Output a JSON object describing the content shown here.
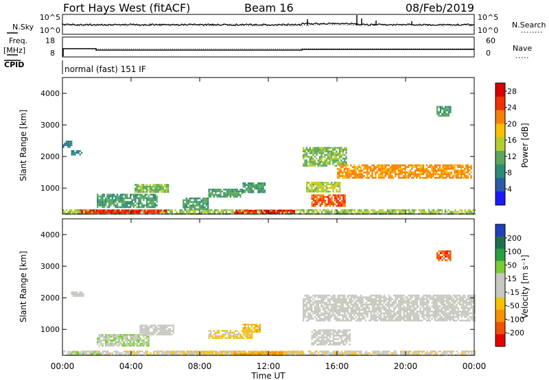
{
  "header": {
    "station": "Fort Hays West (fitACF)",
    "beam": "Beam 16",
    "date": "08/Feb/2019"
  },
  "status_panels": {
    "nsky": {
      "label": "N.Sky",
      "ticks": [
        "10^5",
        "10^0"
      ]
    },
    "nsearch": {
      "label": "N.Search",
      "ticks": [
        "10^5",
        "10^0"
      ]
    },
    "freq": {
      "label_line1": "Freq.",
      "label_line2": "[MHz]",
      "ticks": [
        "18",
        "8"
      ]
    },
    "nave": {
      "label": "Nave",
      "ticks": [
        "60",
        "0"
      ]
    },
    "cpid": {
      "label": "CPID",
      "mode_text": "normal (fast) 151 IF"
    }
  },
  "chart_data": [
    {
      "type": "heatmap",
      "name": "power",
      "xlabel": "Time UT",
      "ylabel": "Slant Range [km]",
      "xlim": [
        0,
        24
      ],
      "ylim": [
        180,
        4500
      ],
      "x_tick_labels": [
        "00:00",
        "04:00",
        "08:00",
        "12:00",
        "16:00",
        "20:00",
        "00:00"
      ],
      "y_tick_labels": [
        "1000",
        "2000",
        "3000",
        "4000"
      ],
      "colorbar": {
        "label": "Power [dB]",
        "ticks": [
          "4",
          "8",
          "12",
          "16",
          "20",
          "24",
          "28"
        ],
        "range": [
          0,
          30
        ],
        "colors": [
          "#1a1aff",
          "#2a5aa8",
          "#2e8a78",
          "#5aa85a",
          "#b4cc30",
          "#f8c000",
          "#f88000",
          "#f03000",
          "#d80000"
        ]
      },
      "bands": [
        {
          "t": [
            0.0,
            24.0
          ],
          "range": [
            200,
            330
          ],
          "value": 14
        },
        {
          "t": [
            1.0,
            6.0
          ],
          "range": [
            220,
            320
          ],
          "value": 26
        },
        {
          "t": [
            10.0,
            13.5
          ],
          "range": [
            220,
            310
          ],
          "value": 27
        },
        {
          "t": [
            0.0,
            0.5
          ],
          "range": [
            2300,
            2500
          ],
          "value": 8
        },
        {
          "t": [
            0.5,
            1.1
          ],
          "range": [
            2050,
            2200
          ],
          "value": 8
        },
        {
          "t": [
            2.0,
            5.5
          ],
          "range": [
            380,
            820
          ],
          "value": 10
        },
        {
          "t": [
            4.2,
            6.2
          ],
          "range": [
            850,
            1130
          ],
          "value": 13
        },
        {
          "t": [
            7.0,
            8.5
          ],
          "range": [
            350,
            700
          ],
          "value": 10
        },
        {
          "t": [
            8.5,
            10.5
          ],
          "range": [
            750,
            980
          ],
          "value": 11
        },
        {
          "t": [
            10.5,
            11.8
          ],
          "range": [
            880,
            1180
          ],
          "value": 10
        },
        {
          "t": [
            14.0,
            16.5
          ],
          "range": [
            1700,
            2300
          ],
          "value": 13
        },
        {
          "t": [
            14.2,
            16.2
          ],
          "range": [
            900,
            1200
          ],
          "value": 15
        },
        {
          "t": [
            14.5,
            16.5
          ],
          "range": [
            450,
            800
          ],
          "value": 24
        },
        {
          "t": [
            16.0,
            23.8
          ],
          "range": [
            1300,
            1750
          ],
          "value": 21
        },
        {
          "t": [
            21.8,
            22.6
          ],
          "range": [
            3300,
            3600
          ],
          "value": 11
        }
      ]
    },
    {
      "type": "heatmap",
      "name": "velocity",
      "xlabel": "Time UT",
      "ylabel": "Slant Range [km]",
      "xlim": [
        0,
        24
      ],
      "ylim": [
        180,
        4500
      ],
      "x_tick_labels": [
        "00:00",
        "04:00",
        "08:00",
        "12:00",
        "16:00",
        "20:00",
        "00:00"
      ],
      "y_tick_labels": [
        "1000",
        "2000",
        "3000",
        "4000"
      ],
      "colorbar": {
        "label": "Velocity [m s⁻¹]",
        "ticks": [
          "200",
          "100",
          "50",
          "15",
          "-15",
          "-50",
          "-100",
          "-200"
        ],
        "range": [
          -250,
          250
        ],
        "colors": [
          "#2040c0",
          "#1f6f4f",
          "#2aa040",
          "#7acc30",
          "#c8c8c0",
          "#c8c8c0",
          "#f8c000",
          "#f89000",
          "#f05000",
          "#e80000"
        ]
      },
      "bands": [
        {
          "t": [
            0.0,
            24.0
          ],
          "range": [
            200,
            330
          ],
          "value": -30
        },
        {
          "t": [
            0.3,
            2.2
          ],
          "range": [
            220,
            310
          ],
          "value": 45
        },
        {
          "t": [
            6.0,
            14.0
          ],
          "range": [
            220,
            320
          ],
          "value": -60
        },
        {
          "t": [
            10.0,
            13.0
          ],
          "range": [
            220,
            300
          ],
          "value": -110
        },
        {
          "t": [
            0.5,
            1.2
          ],
          "range": [
            2050,
            2200
          ],
          "value": 0
        },
        {
          "t": [
            2.0,
            5.0
          ],
          "range": [
            500,
            850
          ],
          "value": 40
        },
        {
          "t": [
            4.5,
            6.5
          ],
          "range": [
            850,
            1150
          ],
          "value": 0
        },
        {
          "t": [
            8.5,
            11.0
          ],
          "range": [
            750,
            980
          ],
          "value": -60
        },
        {
          "t": [
            10.5,
            11.5
          ],
          "range": [
            950,
            1180
          ],
          "value": -80
        },
        {
          "t": [
            14.0,
            24.0
          ],
          "range": [
            1300,
            2100
          ],
          "value": 0
        },
        {
          "t": [
            14.5,
            16.8
          ],
          "range": [
            500,
            1000
          ],
          "value": 0
        },
        {
          "t": [
            21.8,
            22.6
          ],
          "range": [
            3200,
            3500
          ],
          "value": -180
        }
      ]
    }
  ]
}
